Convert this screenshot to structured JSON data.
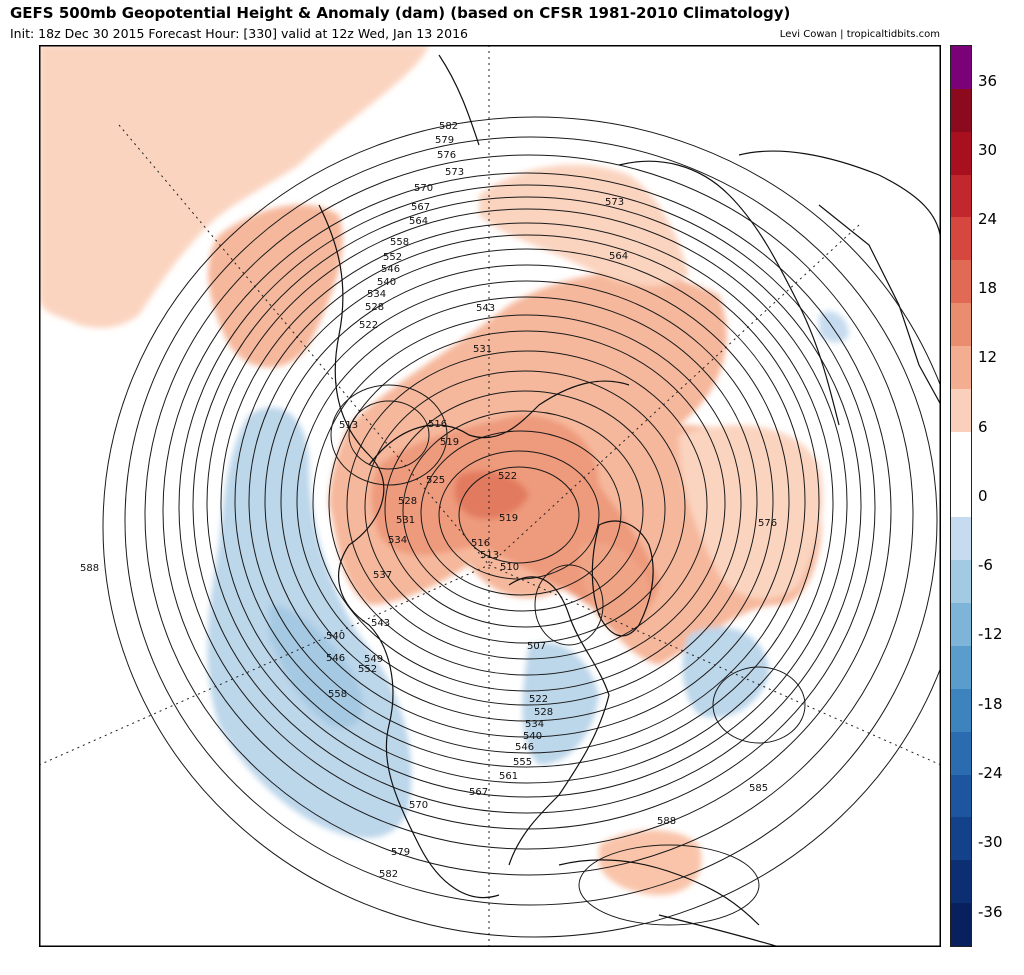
{
  "header": {
    "title": "GEFS 500mb Geopotential Height & Anomaly (dam) (based on CFSR 1981-2010 Climatology)",
    "subtitle": "Init: 18z Dec 30 2015   Forecast Hour: [330]   valid at 12z Wed, Jan 13 2016",
    "credit": "Levi Cowan | tropicaltidbits.com"
  },
  "colorbar": {
    "labels": [
      "36",
      "30",
      "24",
      "18",
      "12",
      "6",
      "0",
      "-6",
      "-12",
      "-18",
      "-24",
      "-30",
      "-36"
    ],
    "colors": [
      "#7a0177",
      "#8b0a1d",
      "#a8101f",
      "#c1272d",
      "#d5473f",
      "#e06a54",
      "#ea8c6e",
      "#f3ae92",
      "#fad0bc",
      "#ffffff",
      "#ffffff",
      "#c6dbef",
      "#a3cae3",
      "#7db4d7",
      "#5a9ccb",
      "#3d84bf",
      "#2b6cb0",
      "#1d559f",
      "#13418a",
      "#0c2f74",
      "#08205e"
    ]
  },
  "map": {
    "height_labels": [
      "582",
      "579",
      "576",
      "573",
      "570",
      "567",
      "564",
      "558",
      "552",
      "546",
      "540",
      "534",
      "528",
      "522",
      "543",
      "531",
      "513",
      "516",
      "519",
      "525",
      "528",
      "531",
      "534",
      "537",
      "522",
      "519",
      "516",
      "513",
      "510",
      "507",
      "573",
      "564",
      "576",
      "588",
      "543",
      "540",
      "546",
      "549",
      "552",
      "558",
      "522",
      "528",
      "534",
      "540",
      "546",
      "555",
      "561",
      "567",
      "570",
      "579",
      "582",
      "585",
      "588"
    ]
  }
}
